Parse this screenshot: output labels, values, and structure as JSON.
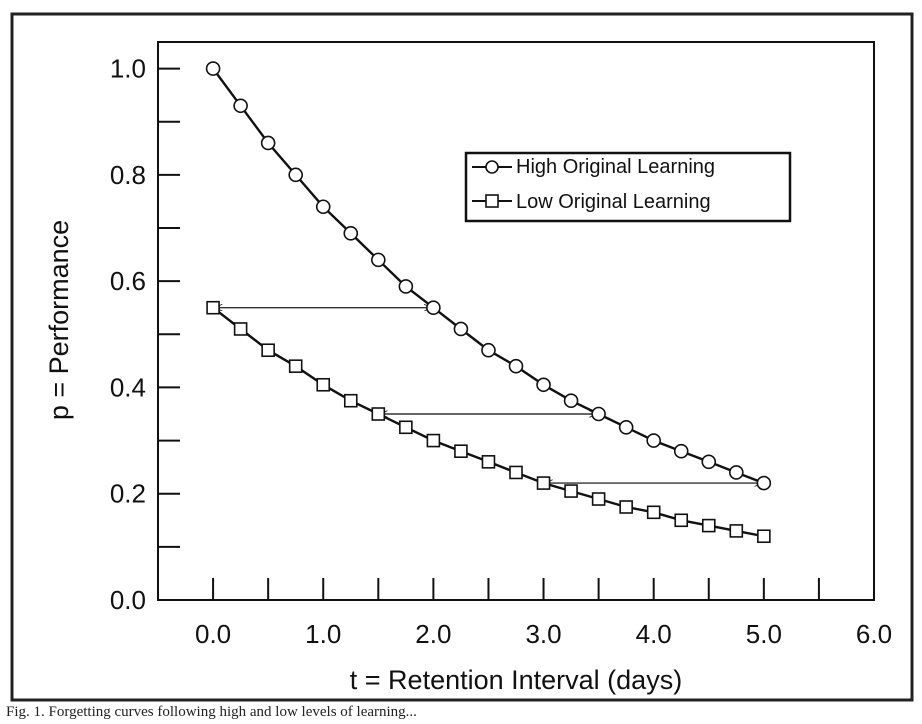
{
  "chart_data": {
    "type": "line",
    "title": "",
    "xlabel": "t = Retention Interval (days)",
    "ylabel": "p = Performance",
    "xlim": [
      -0.5,
      6.0
    ],
    "ylim": [
      0.0,
      1.05
    ],
    "xticks": [
      0.0,
      0.5,
      1.0,
      1.5,
      2.0,
      2.5,
      3.0,
      3.5,
      4.0,
      4.5,
      5.0,
      5.5,
      6.0
    ],
    "xtick_labels": [
      "0.0",
      "1.0",
      "2.0",
      "3.0",
      "4.0",
      "5.0",
      "6.0"
    ],
    "xtick_label_values": [
      0.0,
      1.0,
      2.0,
      3.0,
      4.0,
      5.0,
      6.0
    ],
    "yticks": [
      0.0,
      0.1,
      0.2,
      0.3,
      0.4,
      0.5,
      0.6,
      0.7,
      0.8,
      0.9,
      1.0
    ],
    "ytick_labels": [
      "0.0",
      "0.2",
      "0.4",
      "0.6",
      "0.8",
      "1.0"
    ],
    "ytick_label_values": [
      0.0,
      0.2,
      0.4,
      0.6,
      0.8,
      1.0
    ],
    "legend_position": "top-right",
    "x": [
      0.0,
      0.25,
      0.5,
      0.75,
      1.0,
      1.25,
      1.5,
      1.75,
      2.0,
      2.25,
      2.5,
      2.75,
      3.0,
      3.25,
      3.5,
      3.75,
      4.0,
      4.25,
      4.5,
      4.75,
      5.0
    ],
    "series": [
      {
        "name": "High Original Learning",
        "marker": "circle",
        "values": [
          1.0,
          0.93,
          0.86,
          0.8,
          0.74,
          0.69,
          0.64,
          0.59,
          0.55,
          0.51,
          0.47,
          0.44,
          0.405,
          0.375,
          0.35,
          0.325,
          0.3,
          0.28,
          0.26,
          0.24,
          0.22
        ]
      },
      {
        "name": "Low Original Learning",
        "marker": "square",
        "values": [
          0.55,
          0.51,
          0.47,
          0.44,
          0.405,
          0.375,
          0.35,
          0.325,
          0.3,
          0.28,
          0.26,
          0.24,
          0.22,
          0.205,
          0.19,
          0.175,
          0.165,
          0.15,
          0.14,
          0.13,
          0.12
        ]
      }
    ],
    "annotations": [
      {
        "type": "double-arrow",
        "x_from": 0.0,
        "x_to": 2.0,
        "y": 0.55
      },
      {
        "type": "double-arrow",
        "x_from": 1.5,
        "x_to": 3.5,
        "y": 0.35
      },
      {
        "type": "double-arrow",
        "x_from": 3.0,
        "x_to": 5.0,
        "y": 0.22
      }
    ]
  },
  "caption": "Fig. 1. Forgetting curves following high and low levels of learning..."
}
